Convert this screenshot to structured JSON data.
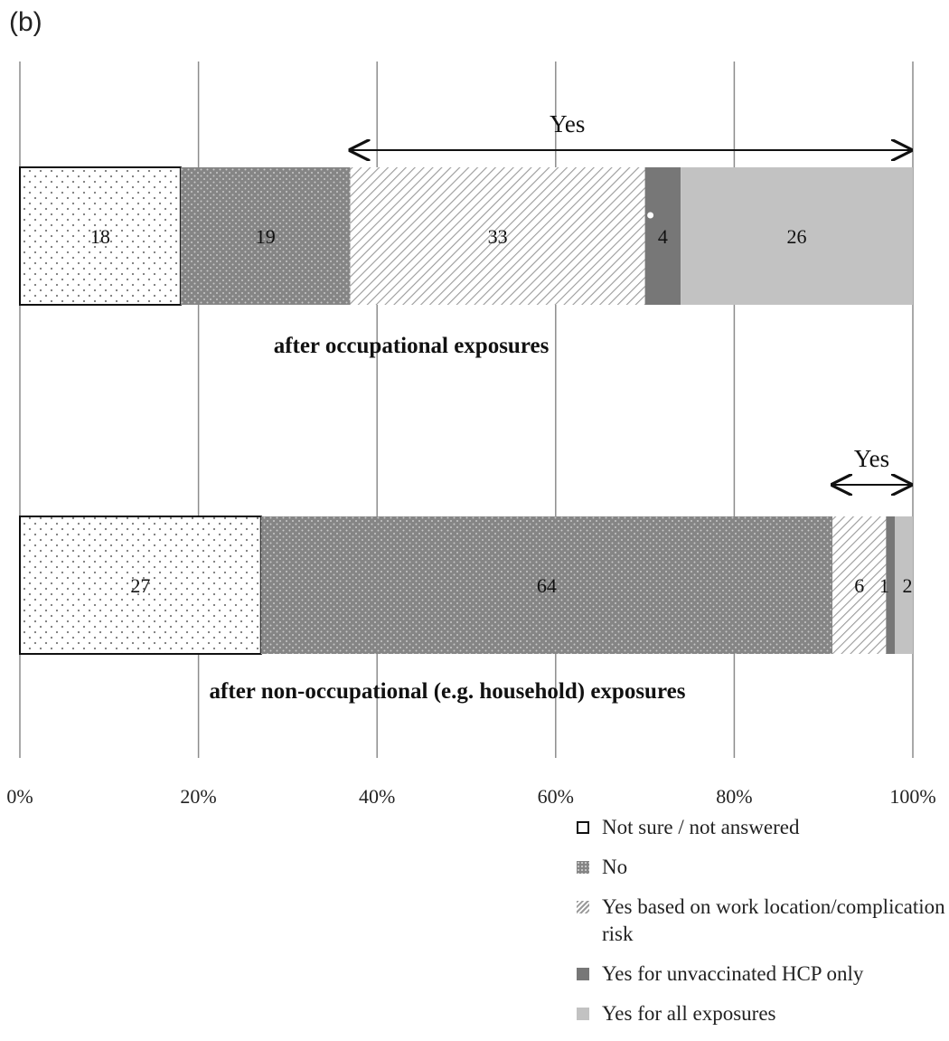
{
  "panel_label": "(b)",
  "chart_data": {
    "type": "bar",
    "orientation": "horizontal",
    "stacked": "percent",
    "categories": [
      "after occupational  exposures",
      "after non-occupational (e.g. household) exposures"
    ],
    "series": [
      {
        "name": "Not sure / not answered",
        "values": [
          18,
          27
        ],
        "color": "#ffffff",
        "pattern": "dots-sparse"
      },
      {
        "name": "No",
        "values": [
          19,
          64
        ],
        "color": "#8a8a8a",
        "pattern": "dots-dense"
      },
      {
        "name": "Yes based on work location/complication risk",
        "values": [
          33,
          6
        ],
        "color": "#ffffff",
        "pattern": "diagonal-hatch"
      },
      {
        "name": "Yes for unvaccinated HCP only",
        "values": [
          4,
          1
        ],
        "color": "#777777",
        "pattern": "solid"
      },
      {
        "name": "Yes for all exposures",
        "values": [
          26,
          2
        ],
        "color": "#c2c2c2",
        "pattern": "solid"
      }
    ],
    "segment_labels": [
      [
        "18",
        "19",
        "33",
        "4",
        "26"
      ],
      [
        "27",
        "64",
        "6",
        "1",
        "2"
      ]
    ],
    "xlim": [
      0,
      100
    ],
    "x_ticks": [
      "0%",
      "20%",
      "40%",
      "60%",
      "80%",
      "100%"
    ],
    "grid": true,
    "legend_position": "bottom-right",
    "annotations": [
      {
        "text": "Yes",
        "bar": 0,
        "from_percent": 37,
        "to_percent": 100
      },
      {
        "text": "Yes",
        "bar": 1,
        "from_percent": 91,
        "to_percent": 100
      }
    ]
  }
}
